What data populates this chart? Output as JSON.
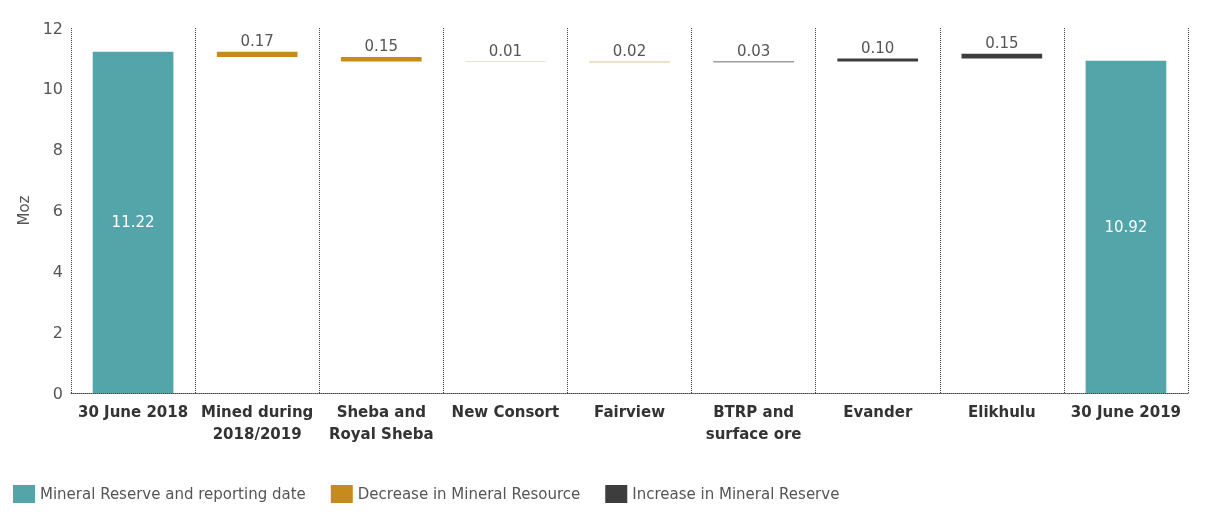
{
  "chart_data": {
    "type": "bar",
    "ylabel": "Moz",
    "categories": [
      "30 June 2018",
      "Mined during 2018/2019",
      "Sheba and Royal Sheba",
      "New Consort",
      "Fairview",
      "BTRP and surface ore",
      "Evander",
      "Elikhulu",
      "30 June 2019"
    ],
    "series": [
      {
        "name": "Mineral Reserve and reporting date",
        "color": "#53a5aa",
        "values": [
          11.22,
          null,
          null,
          null,
          null,
          null,
          null,
          null,
          10.92
        ],
        "value_labels": [
          "11.22",
          null,
          null,
          null,
          null,
          null,
          null,
          null,
          "10.92"
        ]
      },
      {
        "name": "Decrease in Mineral Resource",
        "color": "#c58b1c",
        "base": [
          null,
          11.05,
          10.9,
          10.89,
          10.87,
          null,
          null,
          null,
          null
        ],
        "values": [
          null,
          0.17,
          0.15,
          0.01,
          0.02,
          null,
          null,
          null,
          null
        ],
        "value_labels": [
          null,
          "0.17",
          "0.15",
          "0.01",
          "0.02",
          null,
          null,
          null,
          null
        ]
      },
      {
        "name": "Increase in Mineral Reserve",
        "color": "#3d3d3d",
        "base": [
          null,
          null,
          null,
          null,
          null,
          10.87,
          10.9,
          11.0,
          null
        ],
        "values": [
          null,
          null,
          null,
          null,
          null,
          0.03,
          0.1,
          0.15,
          null
        ],
        "value_labels": [
          null,
          null,
          null,
          null,
          null,
          "0.03",
          "0.10",
          "0.15",
          null
        ]
      }
    ],
    "ylim": [
      0,
      12
    ],
    "yticks": [
      0,
      2,
      4,
      6,
      8,
      10,
      12
    ],
    "grid": "x",
    "legend": "bottom left"
  }
}
